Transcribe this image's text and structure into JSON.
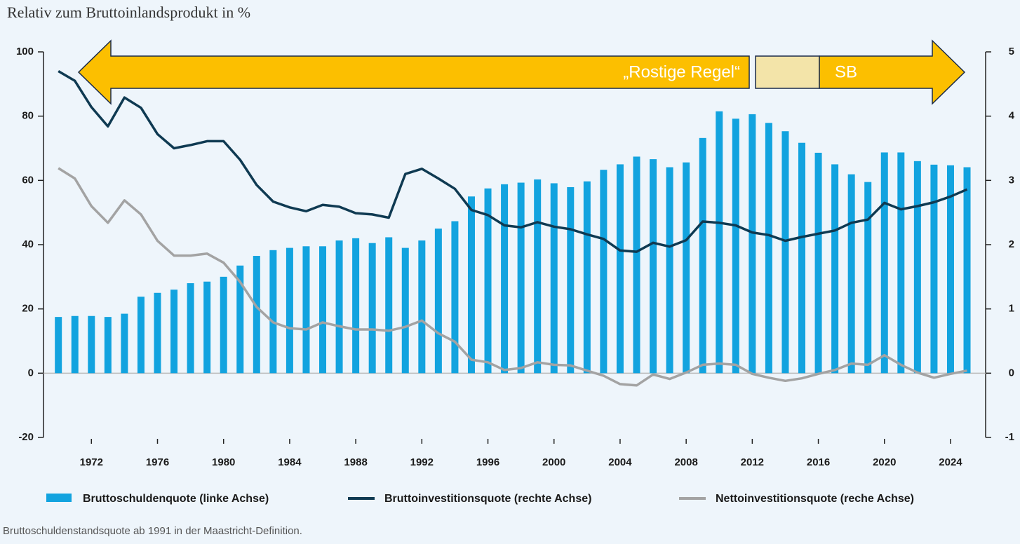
{
  "chart_data": {
    "type": "bar_line",
    "title": "Relativ zum Bruttoinlandsprodukt in %",
    "note": "Bruttoschuldenstandsquote ab 1991 in der Maastricht-Definition.",
    "annotations": [
      "„Rostige Regel“",
      "SB"
    ],
    "x": [
      1970,
      1971,
      1972,
      1973,
      1974,
      1975,
      1976,
      1977,
      1978,
      1979,
      1980,
      1981,
      1982,
      1983,
      1984,
      1985,
      1986,
      1987,
      1988,
      1989,
      1990,
      1991,
      1992,
      1993,
      1994,
      1995,
      1996,
      1997,
      1998,
      1999,
      2000,
      2001,
      2002,
      2003,
      2004,
      2005,
      2006,
      2007,
      2008,
      2009,
      2010,
      2011,
      2012,
      2013,
      2014,
      2015,
      2016,
      2017,
      2018,
      2019,
      2020,
      2021,
      2022,
      2023,
      2024,
      2025
    ],
    "xlim": [
      1969.1,
      2025.7
    ],
    "xticks": [
      1972,
      1976,
      1980,
      1984,
      1988,
      1992,
      1996,
      2000,
      2004,
      2008,
      2012,
      2016,
      2020,
      2024
    ],
    "ylim": [
      -20,
      100
    ],
    "yticks": [
      -20,
      0,
      20,
      40,
      60,
      80,
      100
    ],
    "y2lim": [
      -1,
      5
    ],
    "y2ticks": [
      -1,
      0,
      1,
      2,
      3,
      4,
      5
    ],
    "series": [
      {
        "name": "Bruttoschuldenquote (linke Achse)",
        "type": "bar",
        "color": "#12a3df",
        "values": [
          17.5,
          17.8,
          17.8,
          17.5,
          18.5,
          23.8,
          25,
          26,
          28,
          28.5,
          30,
          33.5,
          36.5,
          38.3,
          39,
          39.5,
          39.5,
          41.3,
          42,
          40.5,
          42.3,
          39,
          41.3,
          45,
          47.3,
          55,
          57.5,
          58.8,
          59.3,
          60.3,
          59.1,
          57.9,
          59.7,
          63.3,
          65,
          67.4,
          66.6,
          64.1,
          65.6,
          73.2,
          81.5,
          79.2,
          80.6,
          77.9,
          75.3,
          71.7,
          68.6,
          65,
          61.9,
          59.5,
          68.7,
          68.7,
          66,
          64.9,
          64.7,
          64.1
        ]
      },
      {
        "name": "Bruttoinvestitionsquote (rechte Achse)",
        "type": "line",
        "axis": "y2",
        "color": "#0f3a52",
        "values": [
          4.7,
          4.55,
          4.14,
          3.84,
          4.29,
          4.13,
          3.72,
          3.5,
          3.55,
          3.61,
          3.61,
          3.32,
          2.93,
          2.67,
          2.58,
          2.52,
          2.62,
          2.59,
          2.49,
          2.47,
          2.42,
          3.1,
          3.18,
          3.03,
          2.87,
          2.54,
          2.46,
          2.3,
          2.27,
          2.35,
          2.28,
          2.24,
          2.16,
          2.09,
          1.91,
          1.89,
          2.03,
          1.97,
          2.07,
          2.36,
          2.34,
          2.3,
          2.19,
          2.15,
          2.06,
          2.12,
          2.17,
          2.22,
          2.34,
          2.39,
          2.65,
          2.55,
          2.6,
          2.66,
          2.75,
          2.86
        ]
      },
      {
        "name": "Nettoinvestitionsquote (reche Achse)",
        "type": "line",
        "axis": "y2",
        "color": "#a3a3a3",
        "values": [
          3.19,
          3.03,
          2.6,
          2.34,
          2.69,
          2.47,
          2.06,
          1.83,
          1.83,
          1.86,
          1.72,
          1.42,
          1.03,
          0.79,
          0.7,
          0.68,
          0.79,
          0.73,
          0.68,
          0.68,
          0.66,
          0.72,
          0.82,
          0.62,
          0.49,
          0.21,
          0.17,
          0.05,
          0.08,
          0.17,
          0.13,
          0.12,
          0.04,
          -0.04,
          -0.17,
          -0.19,
          -0.02,
          -0.09,
          0.01,
          0.13,
          0.15,
          0.13,
          -0.01,
          -0.07,
          -0.12,
          -0.08,
          -0.01,
          0.05,
          0.15,
          0.13,
          0.28,
          0.13,
          0.01,
          -0.07,
          -0.01,
          0.04
        ]
      }
    ]
  }
}
